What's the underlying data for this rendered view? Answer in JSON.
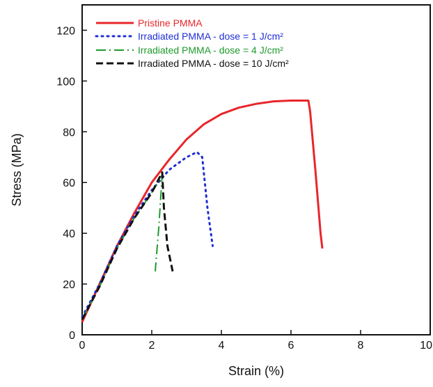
{
  "chart_data": {
    "type": "line",
    "title": "",
    "xlabel": "Strain (%)",
    "ylabel": "Stress (MPa)",
    "xlim": [
      0,
      10
    ],
    "ylim": [
      0,
      130
    ],
    "x_ticks": [
      "0",
      "2",
      "4",
      "6",
      "8",
      "10"
    ],
    "y_ticks": [
      "0",
      "20",
      "40",
      "60",
      "80",
      "100",
      "120"
    ],
    "x_tick_values": [
      0,
      2,
      4,
      6,
      8,
      10
    ],
    "y_tick_values": [
      0,
      20,
      40,
      60,
      80,
      100,
      120
    ],
    "grid": false,
    "legend_position": "top-left",
    "series": [
      {
        "name": "Pristine PMMA",
        "color": "#e8262b",
        "dash": "solid",
        "points": [
          [
            0,
            5
          ],
          [
            0.5,
            20
          ],
          [
            1,
            35
          ],
          [
            1.5,
            48
          ],
          [
            2,
            60
          ],
          [
            2.5,
            69
          ],
          [
            3,
            77
          ],
          [
            3.5,
            83
          ],
          [
            4,
            87
          ],
          [
            4.5,
            89.5
          ],
          [
            5,
            91
          ],
          [
            5.5,
            92
          ],
          [
            6,
            92.3
          ],
          [
            6.5,
            92.3
          ],
          [
            6.55,
            88
          ],
          [
            6.7,
            65
          ],
          [
            6.85,
            40
          ],
          [
            6.9,
            34
          ]
        ]
      },
      {
        "name": "Irradiated PMMA - dose = 1 J/cm²",
        "color": "#1f2fd6",
        "dash": "dot",
        "points": [
          [
            0,
            7
          ],
          [
            0.5,
            20
          ],
          [
            1,
            35
          ],
          [
            1.5,
            47
          ],
          [
            2,
            57
          ],
          [
            2.5,
            65
          ],
          [
            3,
            70
          ],
          [
            3.3,
            72
          ],
          [
            3.45,
            70
          ],
          [
            3.6,
            50
          ],
          [
            3.75,
            35
          ]
        ]
      },
      {
        "name": "Irradiated PMMA - dose = 4 J/cm²",
        "color": "#1d9a2c",
        "dash": "dashdot",
        "points": [
          [
            0,
            6
          ],
          [
            0.5,
            19
          ],
          [
            1,
            34
          ],
          [
            1.5,
            46
          ],
          [
            2,
            56
          ],
          [
            2.3,
            63
          ],
          [
            2.2,
            42
          ],
          [
            2.1,
            25
          ]
        ]
      },
      {
        "name": "Irradiated PMMA - dose = 10 J/cm²",
        "color": "#111111",
        "dash": "dash",
        "points": [
          [
            0,
            6
          ],
          [
            0.5,
            19
          ],
          [
            1,
            34
          ],
          [
            1.5,
            46
          ],
          [
            2,
            56
          ],
          [
            2.3,
            64
          ],
          [
            2.35,
            50
          ],
          [
            2.45,
            35
          ],
          [
            2.6,
            25
          ]
        ]
      }
    ]
  },
  "legend": {
    "items": [
      "Pristine PMMA",
      "Irradiated PMMA - dose = 1 J/cm²",
      "Irradiated PMMA - dose = 4 J/cm²",
      "Irradiated PMMA - dose = 10 J/cm²"
    ]
  }
}
